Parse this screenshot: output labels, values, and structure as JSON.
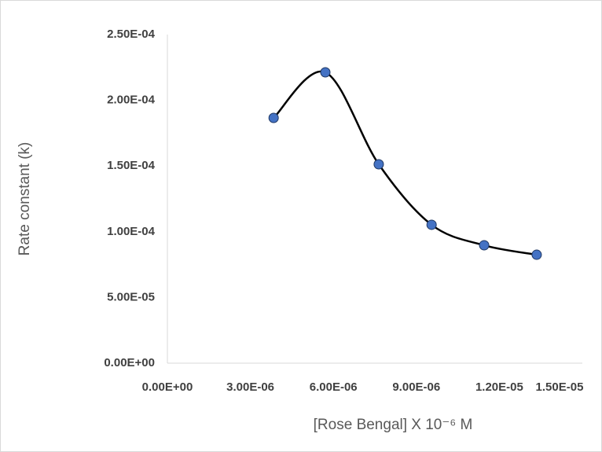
{
  "chart_data": {
    "type": "scatter",
    "smooth": true,
    "y_label": "Rate constant (k)",
    "x_label": "[Rose Bengal] X  10⁻⁶ M",
    "series": [
      {
        "color": "#4472c4",
        "line_color": "#000000",
        "x": [
          3.84e-06,
          5.71e-06,
          7.64e-06,
          9.55e-06,
          1.145e-05,
          1.335e-05
        ],
        "values": [
          0.0001866,
          0.0002213,
          0.0001513,
          0.0001053,
          8.97e-05,
          8.25e-05
        ]
      }
    ],
    "xlim": [
      0,
      1.5e-05
    ],
    "xticks": [
      {
        "value": 0,
        "label": "0.00E+00"
      },
      {
        "value": 3e-06,
        "label": "3.00E-06"
      },
      {
        "value": 6e-06,
        "label": "6.00E-06"
      },
      {
        "value": 9e-06,
        "label": "9.00E-06"
      },
      {
        "value": 1.2e-05,
        "label": "1.20E-05"
      },
      {
        "value": 1.5e-05,
        "label": "1.50E-05"
      }
    ],
    "ylim": [
      0,
      0.00025
    ],
    "yticks": [
      {
        "value": 0,
        "label": "0.00E+00"
      },
      {
        "value": 5e-05,
        "label": "5.00E-05"
      },
      {
        "value": 0.0001,
        "label": "1.00E-04"
      },
      {
        "value": 0.00015,
        "label": "1.50E-04"
      },
      {
        "value": 0.0002,
        "label": "2.00E-04"
      },
      {
        "value": 0.00025,
        "label": "2.50E-04"
      }
    ],
    "grid": false
  }
}
